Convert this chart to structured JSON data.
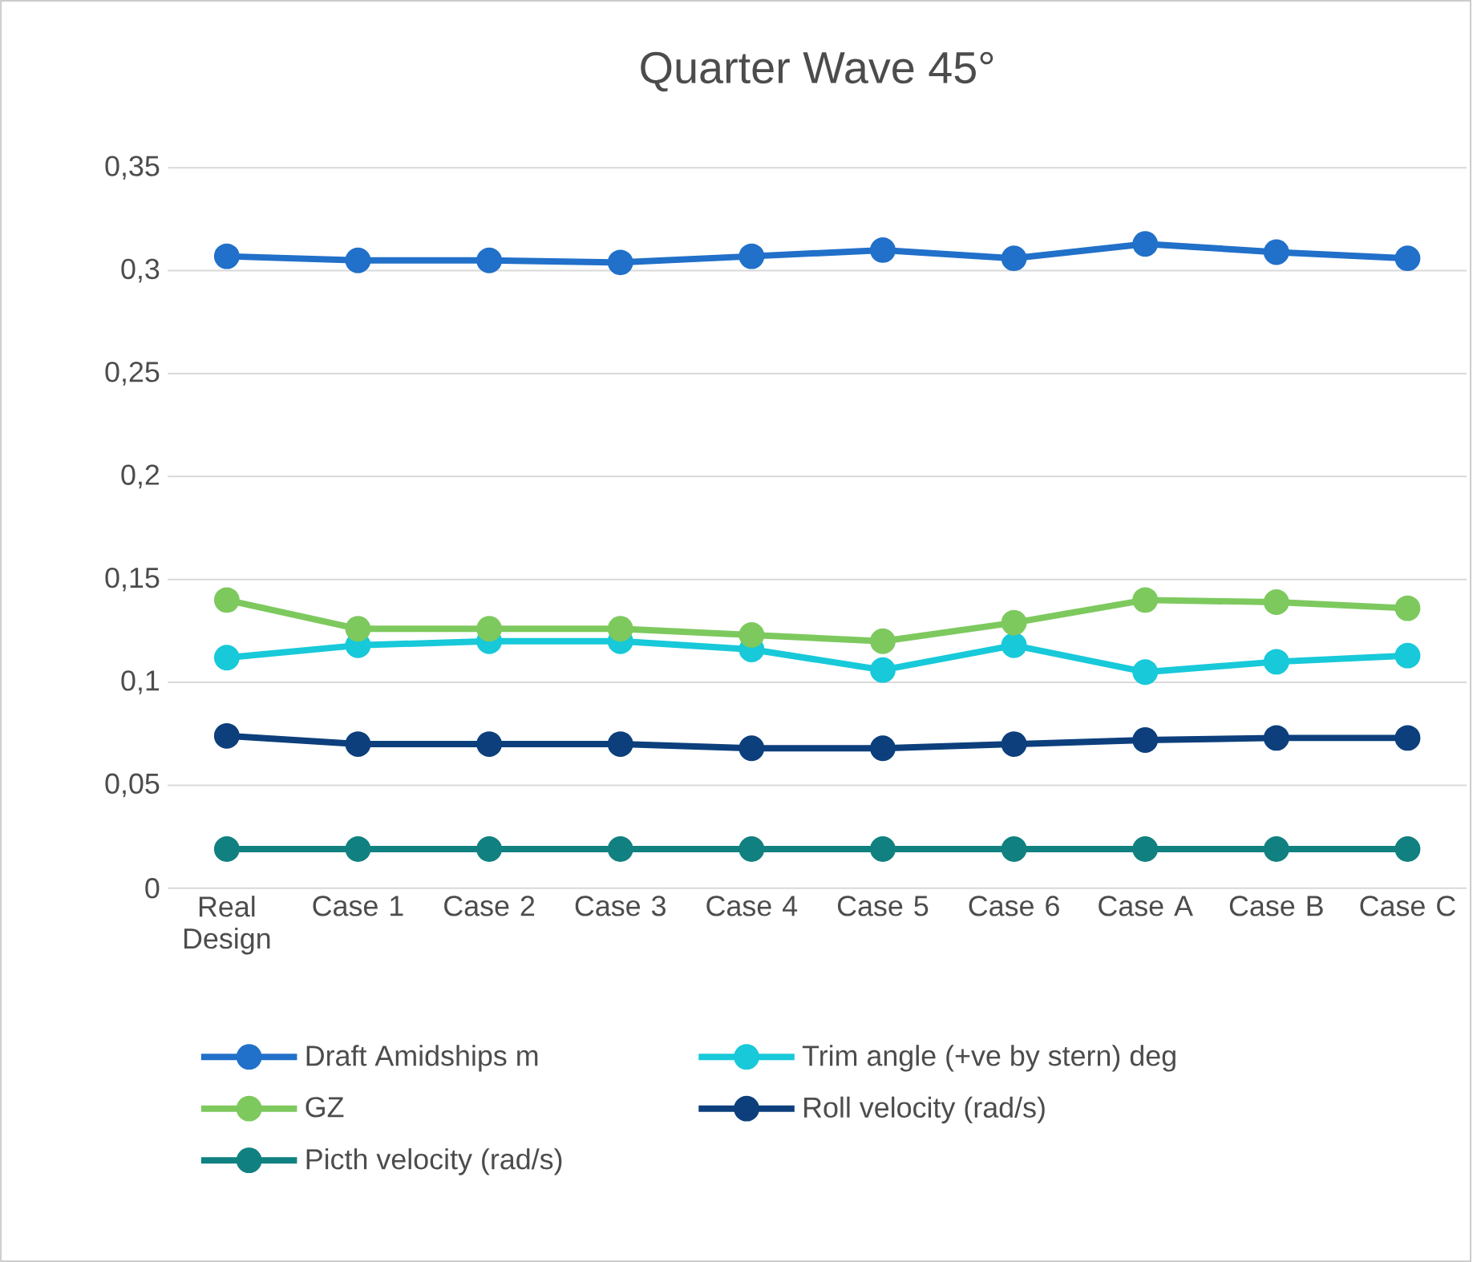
{
  "chart_data": {
    "type": "line",
    "title": "Quarter Wave 45°",
    "categories": [
      "Real Design",
      "Case 1",
      "Case 2",
      "Case 3",
      "Case 4",
      "Case 5",
      "Case 6",
      "Case A",
      "Case B",
      "Case C"
    ],
    "series": [
      {
        "name": "Draft Amidships m",
        "color": "#2170c9",
        "values": [
          0.307,
          0.305,
          0.305,
          0.304,
          0.307,
          0.31,
          0.306,
          0.313,
          0.309,
          0.306
        ]
      },
      {
        "name": "Trim angle (+ve by stern) deg",
        "color": "#17c9d9",
        "values": [
          0.112,
          0.118,
          0.12,
          0.12,
          0.116,
          0.106,
          0.118,
          0.105,
          0.11,
          0.113
        ]
      },
      {
        "name": "GZ",
        "color": "#7dc95e",
        "values": [
          0.14,
          0.126,
          0.126,
          0.126,
          0.123,
          0.12,
          0.129,
          0.14,
          0.139,
          0.136
        ]
      },
      {
        "name": "Roll velocity (rad/s)",
        "color": "#0c3f7c",
        "values": [
          0.074,
          0.07,
          0.07,
          0.07,
          0.068,
          0.068,
          0.07,
          0.072,
          0.073,
          0.073
        ]
      },
      {
        "name": "Picth velocity (rad/s)",
        "color": "#118080",
        "values": [
          0.019,
          0.019,
          0.019,
          0.019,
          0.019,
          0.019,
          0.019,
          0.019,
          0.019,
          0.019
        ]
      }
    ],
    "ylim": [
      0,
      0.35
    ],
    "yticks": [
      0,
      {
        "value": 0.05,
        "label": "0,05"
      },
      {
        "value": 0.1,
        "label": "0,1"
      },
      {
        "value": 0.15,
        "label": "0,15"
      },
      {
        "value": 0.2,
        "label": "0,2"
      },
      {
        "value": 0.25,
        "label": "0,25"
      },
      {
        "value": 0.3,
        "label": "0,3"
      },
      {
        "value": 0.35,
        "label": "0,35"
      }
    ],
    "grid": "y",
    "legend": "bottom",
    "marker": "circle",
    "line_style": "solid"
  }
}
